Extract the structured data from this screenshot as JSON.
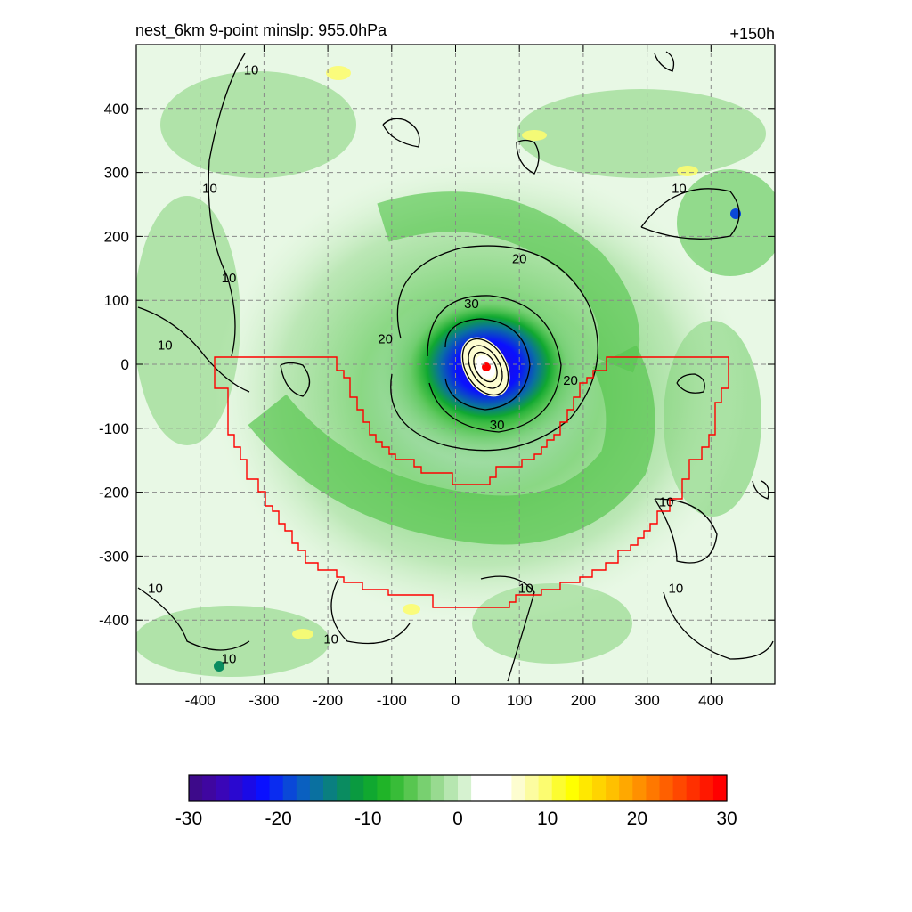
{
  "chart_data": {
    "type": "heatmap",
    "title": "nest_6km  9-point minslp: 955.0hPa",
    "title_right": "+150h",
    "xlim": [
      -500,
      500
    ],
    "ylim": [
      -500,
      500
    ],
    "xticks": [
      -400,
      -300,
      -200,
      -100,
      0,
      100,
      200,
      300,
      400
    ],
    "yticks": [
      -400,
      -300,
      -200,
      -100,
      0,
      100,
      200,
      300,
      400
    ],
    "grid": true,
    "storm_center": [
      45,
      -5
    ],
    "contour_levels": [
      10,
      20,
      30
    ],
    "contour_labels": [
      {
        "text": "10",
        "x": -320,
        "y": 460
      },
      {
        "text": "10",
        "x": -385,
        "y": 275
      },
      {
        "text": "10",
        "x": -355,
        "y": 135
      },
      {
        "text": "10",
        "x": -455,
        "y": 30
      },
      {
        "text": "20",
        "x": 100,
        "y": 165
      },
      {
        "text": "30",
        "x": 25,
        "y": 95
      },
      {
        "text": "20",
        "x": -110,
        "y": 40
      },
      {
        "text": "20",
        "x": 180,
        "y": -25
      },
      {
        "text": "30",
        "x": 65,
        "y": -95
      },
      {
        "text": "10",
        "x": 350,
        "y": 275
      },
      {
        "text": "10",
        "x": 330,
        "y": -215
      },
      {
        "text": "10",
        "x": -470,
        "y": -350
      },
      {
        "text": "10",
        "x": -195,
        "y": -430
      },
      {
        "text": "10",
        "x": -355,
        "y": -460
      },
      {
        "text": "10",
        "x": 110,
        "y": -350
      },
      {
        "text": "10",
        "x": 345,
        "y": -350
      }
    ],
    "boundary_color": "#ff0000",
    "colorbar": {
      "ticks": [
        -30,
        -20,
        -10,
        0,
        10,
        20,
        30
      ],
      "tick_labels": [
        "-30",
        "-20",
        "-10",
        "0",
        "10",
        "20",
        "30"
      ],
      "colors": [
        "#3d0a8a",
        "#3f06a0",
        "#3a06b8",
        "#2a08d0",
        "#1a0ae6",
        "#0a10ff",
        "#0a2cf0",
        "#0a48d8",
        "#0a60c0",
        "#0a70a0",
        "#0a7f80",
        "#0a8c60",
        "#0a9a40",
        "#10a830",
        "#20b428",
        "#38bc38",
        "#58c650",
        "#78d070",
        "#98da90",
        "#b6e6b0",
        "#d6f2d0",
        "#ffffff",
        "#ffffff",
        "#ffffff",
        "#fdfdd0",
        "#fcfca0",
        "#fcfc70",
        "#fcfc30",
        "#ffff00",
        "#ffe800",
        "#ffd400",
        "#ffc000",
        "#ffa800",
        "#ff9000",
        "#ff7800",
        "#ff6000",
        "#ff4800",
        "#ff3000",
        "#ff1800",
        "#ff0000"
      ]
    }
  }
}
